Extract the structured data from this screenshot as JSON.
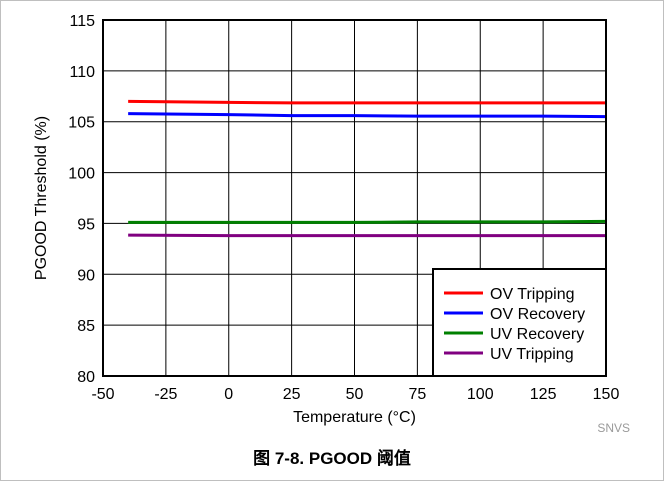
{
  "chart_data": {
    "type": "line",
    "xlabel": "Temperature (°C)",
    "ylabel": "PGOOD Threshold (%)",
    "xlim": [
      -50,
      150
    ],
    "ylim": [
      80,
      115
    ],
    "xticks": [
      -50,
      -25,
      0,
      25,
      50,
      75,
      100,
      125,
      150
    ],
    "yticks": [
      80,
      85,
      90,
      95,
      100,
      105,
      110,
      115
    ],
    "grid": true,
    "legend_position": "bottom-right",
    "series": [
      {
        "name": "OV Tripping",
        "color": "#ff0000",
        "x": [
          -40,
          0,
          25,
          50,
          75,
          100,
          125,
          150
        ],
        "y": [
          107.0,
          106.9,
          106.85,
          106.85,
          106.85,
          106.85,
          106.85,
          106.85
        ]
      },
      {
        "name": "OV Recovery",
        "color": "#0000ff",
        "x": [
          -40,
          0,
          25,
          50,
          75,
          100,
          125,
          150
        ],
        "y": [
          105.8,
          105.7,
          105.6,
          105.6,
          105.55,
          105.55,
          105.55,
          105.5
        ]
      },
      {
        "name": "UV Recovery",
        "color": "#008000",
        "x": [
          -40,
          0,
          25,
          50,
          75,
          100,
          125,
          150
        ],
        "y": [
          95.1,
          95.1,
          95.1,
          95.1,
          95.15,
          95.15,
          95.15,
          95.2
        ]
      },
      {
        "name": "UV Tripping",
        "color": "#800080",
        "x": [
          -40,
          0,
          25,
          50,
          75,
          100,
          125,
          150
        ],
        "y": [
          93.85,
          93.8,
          93.8,
          93.8,
          93.8,
          93.8,
          93.8,
          93.8
        ]
      }
    ]
  },
  "watermark": "SNVS",
  "caption": "图 7-8. PGOOD 阈值"
}
